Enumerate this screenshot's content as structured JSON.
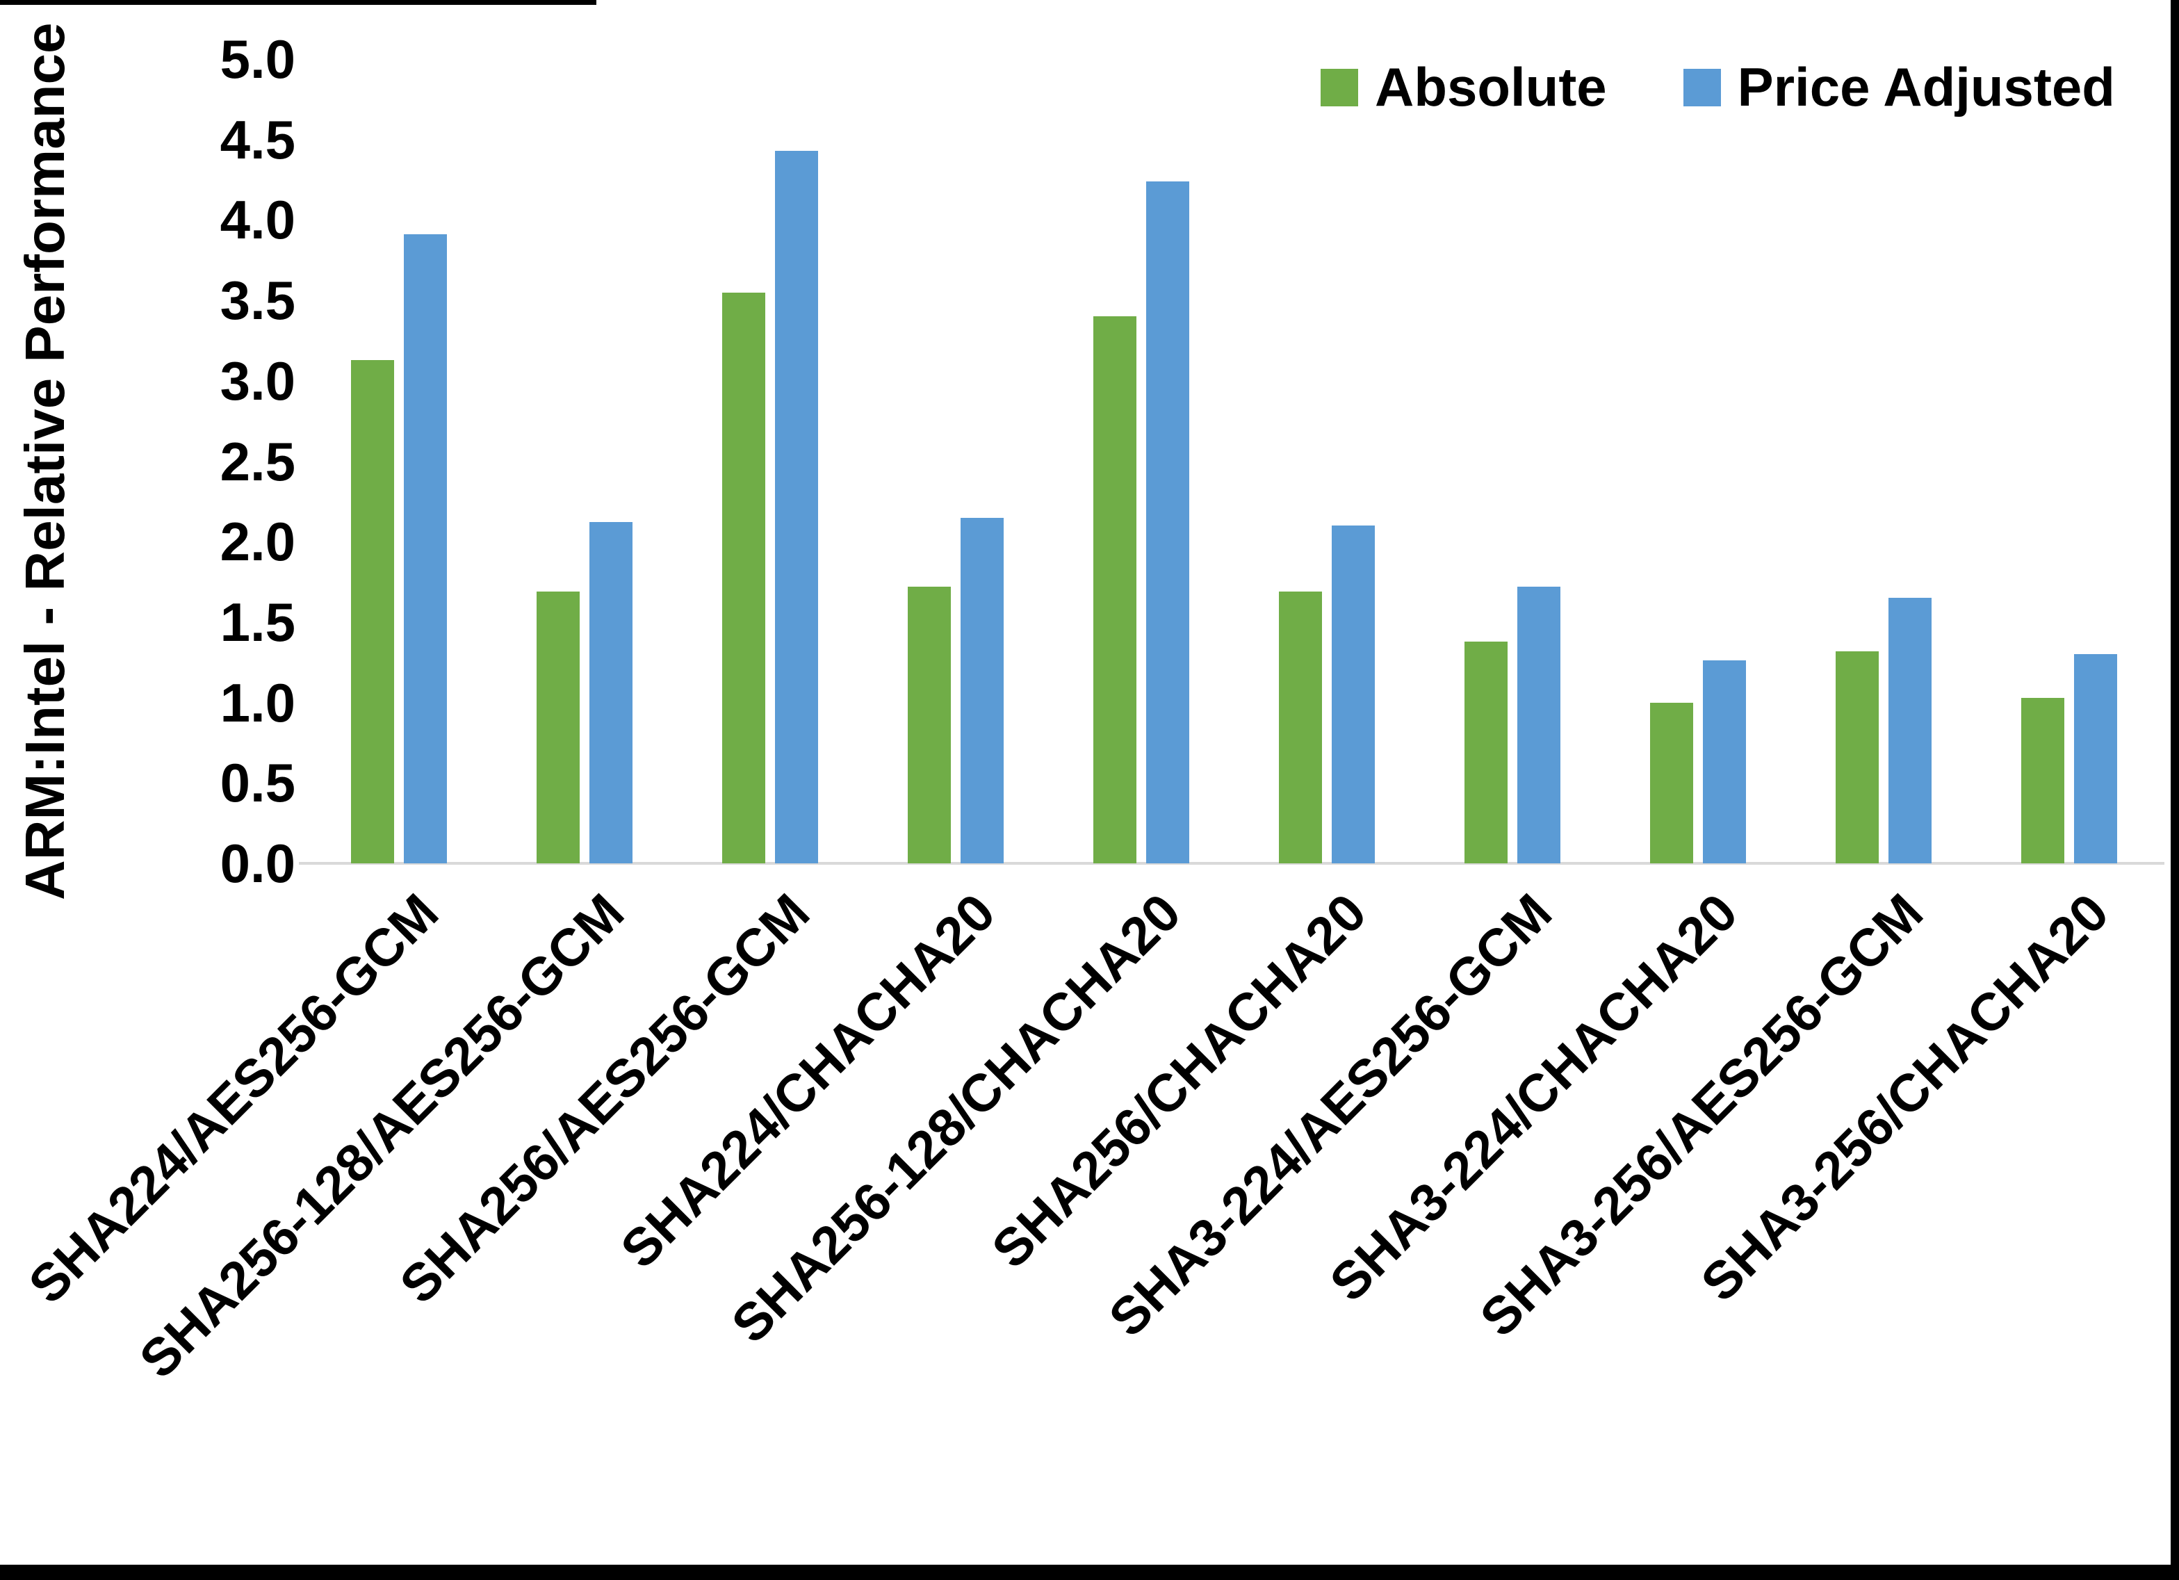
{
  "chart_data": {
    "type": "bar",
    "title": "",
    "xlabel": "",
    "ylabel": "ARM:Intel - Relative Performance",
    "ylim": [
      0,
      5
    ],
    "ytick_step": 0.5,
    "ytick_labels": [
      "5.0",
      "4.5",
      "4.0",
      "3.5",
      "3.0",
      "2.5",
      "2.0",
      "1.5",
      "1.0",
      "0.5",
      "0.0"
    ],
    "grid": false,
    "legend_position": "top-right",
    "categories": [
      "SHA224/AES256-GCM",
      "SHA256-128/AES256-GCM",
      "SHA256/AES256-GCM",
      "SHA224/CHACHA20",
      "SHA256-128/CHACHA20",
      "SHA256/CHACHA20",
      "SHA3-224/AES256-GCM",
      "SHA3-224/CHACHA20",
      "SHA3-256/AES256-GCM",
      "SHA3-256/CHACHA20"
    ],
    "series": [
      {
        "name": "Absolute",
        "color": "#70AD47",
        "values": [
          3.13,
          1.69,
          3.55,
          1.72,
          3.4,
          1.69,
          1.38,
          1.0,
          1.32,
          1.03
        ]
      },
      {
        "name": "Price Adjusted",
        "color": "#5B9BD5",
        "values": [
          3.91,
          2.12,
          4.43,
          2.15,
          4.24,
          2.1,
          1.72,
          1.26,
          1.65,
          1.3
        ]
      }
    ]
  },
  "colors": {
    "absolute_green": "#70AD47",
    "price_adjusted_blue": "#5B9BD5",
    "axis_line_gray": "#D9D9D9",
    "text_black": "#000000",
    "background": "#FFFFFF"
  }
}
